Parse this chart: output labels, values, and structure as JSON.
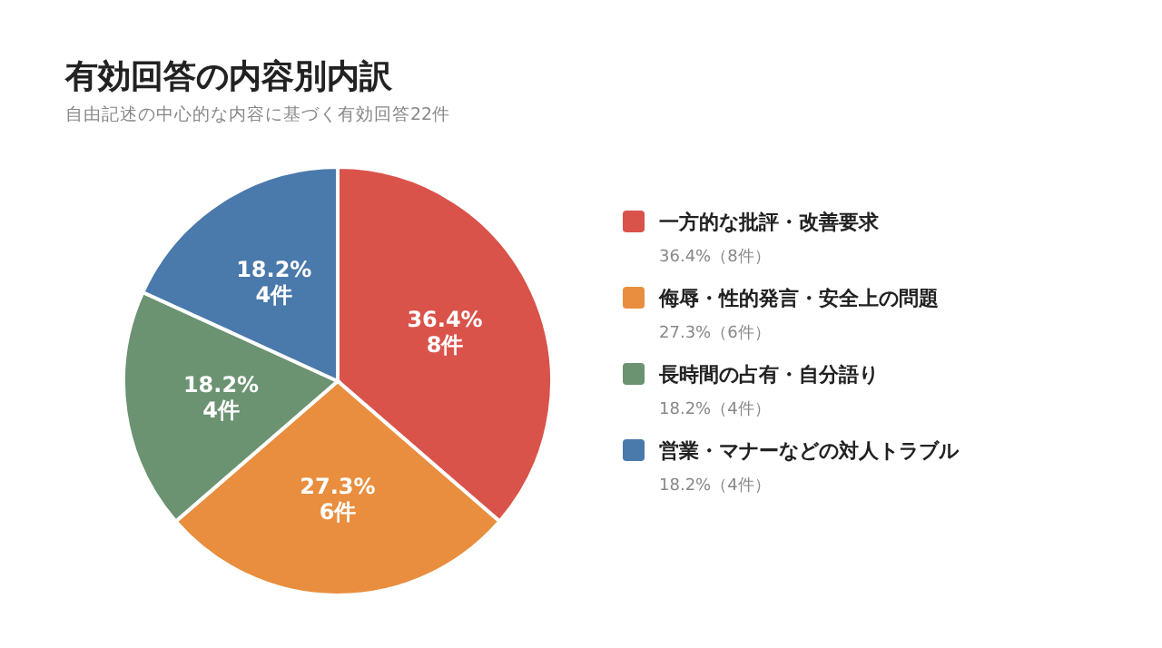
{
  "chart_data": {
    "type": "pie",
    "title": "有効回答の内容別内訳",
    "subtitle": "自由記述の中心的な内容に基づく有効回答22件",
    "categories": [
      "一方的な批評・改善要求",
      "侮辱・性的発言・安全上の問題",
      "長時間の占有・自分語り",
      "営業・マナーなどの対人トラブル"
    ],
    "values": [
      8,
      6,
      4,
      4
    ],
    "colors": [
      "#d9534b",
      "#e88e3e",
      "#6b9271",
      "#4a79ab"
    ],
    "value_labels": [
      "36.4%\n8件",
      "27.3%\n6件",
      "18.2%\n4件",
      "18.2%\n4件"
    ],
    "annotations": [
      "36.4%（8件）",
      "27.3%（6件）",
      "18.2%（4件）",
      "18.2%（4件）"
    ],
    "legend": "right"
  }
}
